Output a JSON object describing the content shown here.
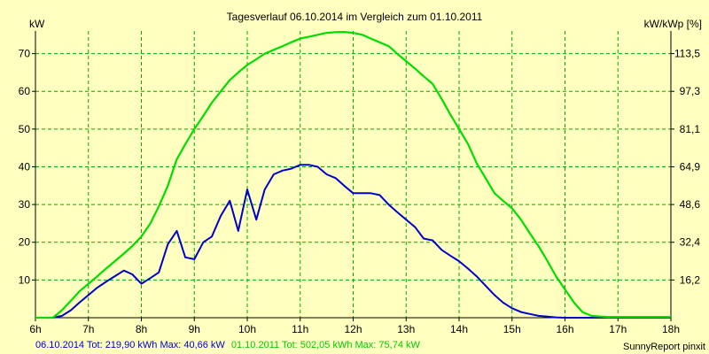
{
  "chart_data": {
    "type": "line",
    "title": "Tagesverlauf 06.10.2014 im Vergleich zum 01.10.2011",
    "ylabel_left": "kW",
    "ylabel_right": "kW/kWp [%]",
    "x_ticks": [
      "6h",
      "7h",
      "8h",
      "9h",
      "10h",
      "11h",
      "12h",
      "13h",
      "14h",
      "15h",
      "16h",
      "17h",
      "18h"
    ],
    "x_range": [
      6,
      18
    ],
    "ylim": [
      0,
      76
    ],
    "y_ticks_left": [
      "10",
      "20",
      "30",
      "40",
      "50",
      "60",
      "70"
    ],
    "y_ticks_right": [
      "16,2",
      "32,4",
      "48,6",
      "64,9",
      "81,1",
      "97,3",
      "113,5"
    ],
    "grid": true,
    "series": [
      {
        "name": "06.10.2014",
        "color": "#0000cc",
        "x": [
          6.0,
          6.33,
          6.5,
          6.67,
          6.83,
          7.0,
          7.17,
          7.33,
          7.5,
          7.67,
          7.83,
          8.0,
          8.17,
          8.33,
          8.5,
          8.67,
          8.83,
          9.0,
          9.17,
          9.33,
          9.5,
          9.67,
          9.83,
          10.0,
          10.17,
          10.33,
          10.5,
          10.67,
          10.83,
          11.0,
          11.17,
          11.33,
          11.5,
          11.67,
          11.83,
          12.0,
          12.17,
          12.33,
          12.5,
          12.67,
          12.83,
          13.0,
          13.17,
          13.33,
          13.5,
          13.67,
          13.83,
          14.0,
          14.17,
          14.33,
          14.5,
          14.67,
          14.83,
          15.0,
          15.17,
          15.33,
          15.5,
          15.67,
          15.83,
          16.0,
          16.17,
          16.33,
          16.5,
          16.67,
          16.83,
          17.0,
          17.17,
          17.33,
          18.0
        ],
        "values": [
          0,
          0,
          0.5,
          2,
          4,
          6,
          8,
          9.5,
          11,
          12.5,
          11.5,
          9,
          10.5,
          12,
          19.5,
          23,
          16,
          15.5,
          20,
          21.5,
          27,
          31,
          23,
          34,
          26,
          34,
          38,
          39,
          39.5,
          40.5,
          40.5,
          40,
          38,
          37,
          35,
          33,
          33,
          33,
          32.5,
          30,
          28,
          26,
          24,
          21,
          20.5,
          18,
          16.5,
          15,
          13,
          11,
          8.5,
          6,
          4,
          2.5,
          1.5,
          1,
          0.5,
          0.3,
          0.1,
          0,
          0,
          0,
          0,
          0,
          0,
          0,
          0,
          0,
          0
        ],
        "legend": "06.10.2014 Tot: 219,90 kWh Max: 40,66 kW"
      },
      {
        "name": "01.10.2011",
        "color": "#00dd00",
        "x": [
          6.0,
          6.33,
          6.5,
          6.67,
          6.83,
          7.0,
          7.17,
          7.33,
          7.5,
          7.67,
          7.83,
          8.0,
          8.17,
          8.33,
          8.5,
          8.67,
          8.83,
          9.0,
          9.17,
          9.33,
          9.5,
          9.67,
          9.83,
          10.0,
          10.17,
          10.33,
          10.5,
          10.67,
          10.83,
          11.0,
          11.17,
          11.33,
          11.5,
          11.67,
          11.83,
          12.0,
          12.17,
          12.33,
          12.5,
          12.67,
          12.83,
          13.0,
          13.17,
          13.33,
          13.5,
          13.67,
          13.83,
          14.0,
          14.17,
          14.33,
          14.5,
          14.67,
          14.83,
          15.0,
          15.17,
          15.33,
          15.5,
          15.67,
          15.83,
          16.0,
          16.17,
          16.33,
          16.5,
          16.67,
          16.83,
          17.0,
          17.17,
          17.33,
          17.5,
          17.67,
          18.0
        ],
        "values": [
          0,
          0,
          2,
          4.5,
          7,
          9,
          11,
          13,
          15,
          17,
          19,
          21.5,
          25,
          29.5,
          35,
          42,
          46,
          50,
          53.5,
          57,
          60,
          63,
          65,
          67,
          68.5,
          70,
          71,
          72,
          73,
          74,
          74.5,
          75,
          75.5,
          75.7,
          75.74,
          75.5,
          75,
          74,
          73,
          72,
          70,
          68,
          66,
          64,
          62,
          58,
          54,
          50,
          46,
          41,
          37,
          33,
          31,
          29,
          26,
          22.5,
          19,
          15,
          11,
          7.5,
          4,
          1.5,
          0.5,
          0.3,
          0.2,
          0.2,
          0.2,
          0.2,
          0.2,
          0.2,
          0.2
        ],
        "legend": "01.10.2011 Tot: 502,05 kWh Max: 75,74 kW"
      }
    ],
    "footer_credit": "SunnyReport pinxit"
  }
}
